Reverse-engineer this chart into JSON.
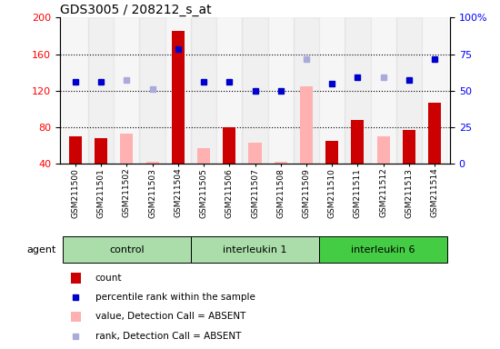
{
  "title": "GDS3005 / 208212_s_at",
  "samples": [
    "GSM211500",
    "GSM211501",
    "GSM211502",
    "GSM211503",
    "GSM211504",
    "GSM211505",
    "GSM211506",
    "GSM211507",
    "GSM211508",
    "GSM211509",
    "GSM211510",
    "GSM211511",
    "GSM211512",
    "GSM211513",
    "GSM211514"
  ],
  "absent_flags": [
    false,
    false,
    true,
    true,
    false,
    true,
    false,
    true,
    true,
    true,
    false,
    false,
    true,
    false,
    false
  ],
  "bar_values_present": [
    70,
    68,
    null,
    null,
    185,
    null,
    80,
    null,
    null,
    null,
    65,
    88,
    null,
    77,
    107
  ],
  "bar_values_absent": [
    null,
    null,
    73,
    42,
    null,
    57,
    null,
    63,
    42,
    125,
    null,
    null,
    70,
    null,
    null
  ],
  "dot_present_values": [
    130,
    130,
    null,
    null,
    165,
    130,
    130,
    120,
    120,
    null,
    128,
    135,
    null,
    132,
    155
  ],
  "dot_absent_values": [
    null,
    null,
    132,
    122,
    null,
    null,
    null,
    null,
    null,
    155,
    null,
    null,
    135,
    null,
    null
  ],
  "bar_color_present": "#cc0000",
  "bar_color_absent": "#ffb0b0",
  "dot_color_present": "#0000cc",
  "dot_color_absent": "#aaaadd",
  "ylim_left": [
    40,
    200
  ],
  "ylim_right": [
    0,
    100
  ],
  "yticks_left": [
    40,
    80,
    120,
    160,
    200
  ],
  "yticks_right": [
    0,
    25,
    50,
    75,
    100
  ],
  "ytick_labels_right": [
    "0",
    "25",
    "50",
    "75",
    "100%"
  ],
  "group_indices": {
    "control": [
      0,
      1,
      2,
      3,
      4
    ],
    "interleukin 1": [
      5,
      6,
      7,
      8,
      9
    ],
    "interleukin 6": [
      10,
      11,
      12,
      13,
      14
    ]
  },
  "group_order": [
    "control",
    "interleukin 1",
    "interleukin 6"
  ],
  "group_colors": {
    "control": "#aaddaa",
    "interleukin 1": "#aaddaa",
    "interleukin 6": "#44cc44"
  },
  "col_bg_even": "#e8e8e8",
  "col_bg_odd": "#d4d4d4",
  "col_bg_alpha": 0.35,
  "grid_lines": [
    80,
    120,
    160
  ],
  "bar_width": 0.5,
  "dot_marker_size": 5,
  "agent_label": "agent",
  "legend_items": [
    {
      "color": "#cc0000",
      "type": "bar",
      "label": "count"
    },
    {
      "color": "#0000cc",
      "type": "dot",
      "label": "percentile rank within the sample"
    },
    {
      "color": "#ffb0b0",
      "type": "bar",
      "label": "value, Detection Call = ABSENT"
    },
    {
      "color": "#aaaadd",
      "type": "dot",
      "label": "rank, Detection Call = ABSENT"
    }
  ]
}
